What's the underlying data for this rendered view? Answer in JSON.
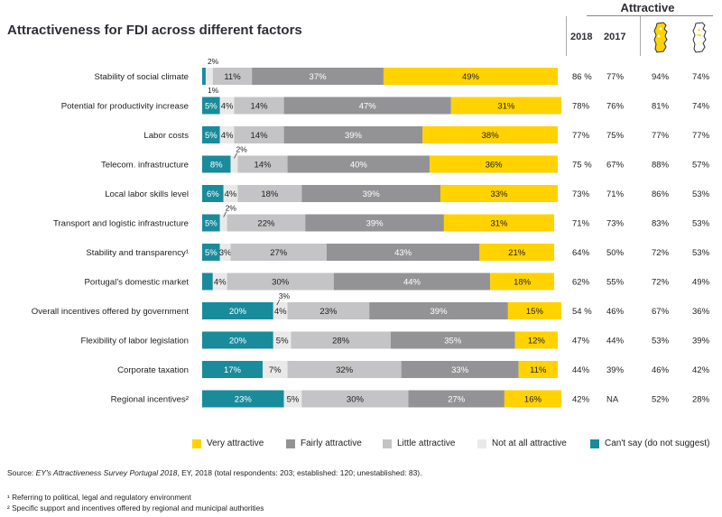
{
  "title": "Attractiveness for FDI across different factors",
  "attractive_header": "Attractive",
  "col_2018": "2018",
  "col_2017": "2017",
  "colors": {
    "very": "#ffd200",
    "fairly": "#939396",
    "little": "#c4c4c6",
    "not_at_all": "#e9e9ea",
    "cant_say": "#1a8b9b",
    "dark_text": "#2e2e38"
  },
  "icons": {
    "established": "portugal-map-filled-icon",
    "unestablished": "portugal-map-outline-icon"
  },
  "legend": [
    {
      "key": "very",
      "label": "Very attractive"
    },
    {
      "key": "fairly",
      "label": "Fairly attractive"
    },
    {
      "key": "little",
      "label": "Little attractive"
    },
    {
      "key": "not_at_all",
      "label": "Not at all attractive"
    },
    {
      "key": "cant_say",
      "label": "Can't say (do not suggest)"
    }
  ],
  "source_prefix": "Source: ",
  "source_italic": "EY's Attractiveness Survey Portugal 2018",
  "source_suffix": ", EY, 2018 (total respondents: 203; established: 120; unestablished: 83).",
  "footnote1": "¹ Referring to political, legal and regulatory environment",
  "footnote2": "² Specific support and incentives offered by regional and municipal authorities",
  "chart_data": {
    "type": "bar",
    "stacked": true,
    "orientation": "horizontal",
    "title": "Attractiveness for FDI across different factors",
    "categories": [
      "Stability of social climate",
      "Potential for productivity increase",
      "Labor costs",
      "Telecom. infrastructure",
      "Local labor skills level",
      "Transport and logistic infrastructure",
      "Stability and transparency¹",
      "Portugal’s domestic market",
      "Overall incentives offered by government",
      "Flexibility of labor legislation",
      "Corporate taxation",
      "Regional incentives²"
    ],
    "series": [
      {
        "name": "Can't say (do not suggest)",
        "key": "cant_say",
        "values": [
          1,
          5,
          5,
          8,
          6,
          5,
          5,
          3,
          20,
          20,
          17,
          23
        ]
      },
      {
        "name": "Not at all attractive",
        "key": "not_at_all",
        "values": [
          2,
          4,
          4,
          2,
          4,
          2,
          3,
          4,
          4,
          5,
          7,
          5
        ]
      },
      {
        "name": "Little attractive",
        "key": "little",
        "values": [
          11,
          14,
          14,
          14,
          18,
          22,
          27,
          30,
          23,
          28,
          32,
          30
        ]
      },
      {
        "name": "Fairly attractive",
        "key": "fairly",
        "values": [
          37,
          47,
          39,
          40,
          39,
          39,
          43,
          44,
          39,
          35,
          33,
          27
        ]
      },
      {
        "name": "Very attractive",
        "key": "very",
        "values": [
          49,
          31,
          38,
          36,
          33,
          31,
          21,
          18,
          15,
          12,
          11,
          16
        ]
      }
    ],
    "value_labels": {
      "cant_say": [
        "",
        "5%",
        "5%",
        "8%",
        "6%",
        "5%",
        "5%",
        "",
        "20%",
        "20%",
        "17%",
        "23%"
      ],
      "not_at_all": [
        "",
        "4%",
        "4%",
        "",
        "4%",
        "",
        "3%",
        "4%",
        "4%",
        "5%",
        "7%",
        "5%"
      ],
      "little": [
        "11%",
        "14%",
        "14%",
        "14%",
        "18%",
        "22%",
        "27%",
        "30%",
        "23%",
        "28%",
        "32%",
        "30%"
      ],
      "fairly": [
        "37%",
        "47%",
        "39%",
        "40%",
        "39%",
        "39%",
        "43%",
        "44%",
        "39%",
        "35%",
        "33%",
        "27%"
      ],
      "very": [
        "49%",
        "31%",
        "38%",
        "36%",
        "33%",
        "31%",
        "21%",
        "18%",
        "15%",
        "12%",
        "11%",
        "16%"
      ]
    },
    "callouts": [
      {
        "row": 0,
        "text": "2%",
        "position": "above"
      },
      {
        "row": 0,
        "text": "1%",
        "position": "below"
      },
      {
        "row": 3,
        "text": "2%",
        "position": "above"
      },
      {
        "row": 5,
        "text": "2%",
        "position": "above"
      },
      {
        "row": 8,
        "text": "3%",
        "position": "above"
      }
    ],
    "attractive_2018": [
      "86 %",
      "78%",
      "77%",
      "75 %",
      "73%",
      "71%",
      "64%",
      "62%",
      "54 %",
      "47%",
      "44%",
      "42%"
    ],
    "attractive_2017": [
      "77%",
      "76%",
      "75%",
      "67%",
      "71%",
      "73%",
      "50%",
      "55%",
      "46%",
      "44%",
      "39%",
      "NA"
    ],
    "attractive_established": [
      "94%",
      "81%",
      "77%",
      "88%",
      "86%",
      "83%",
      "72%",
      "72%",
      "67%",
      "53%",
      "46%",
      "52%"
    ],
    "attractive_unestablished": [
      "74%",
      "74%",
      "77%",
      "57%",
      "53%",
      "53%",
      "53%",
      "49%",
      "36%",
      "39%",
      "42%",
      "28%"
    ],
    "xlim": [
      0,
      100
    ]
  }
}
